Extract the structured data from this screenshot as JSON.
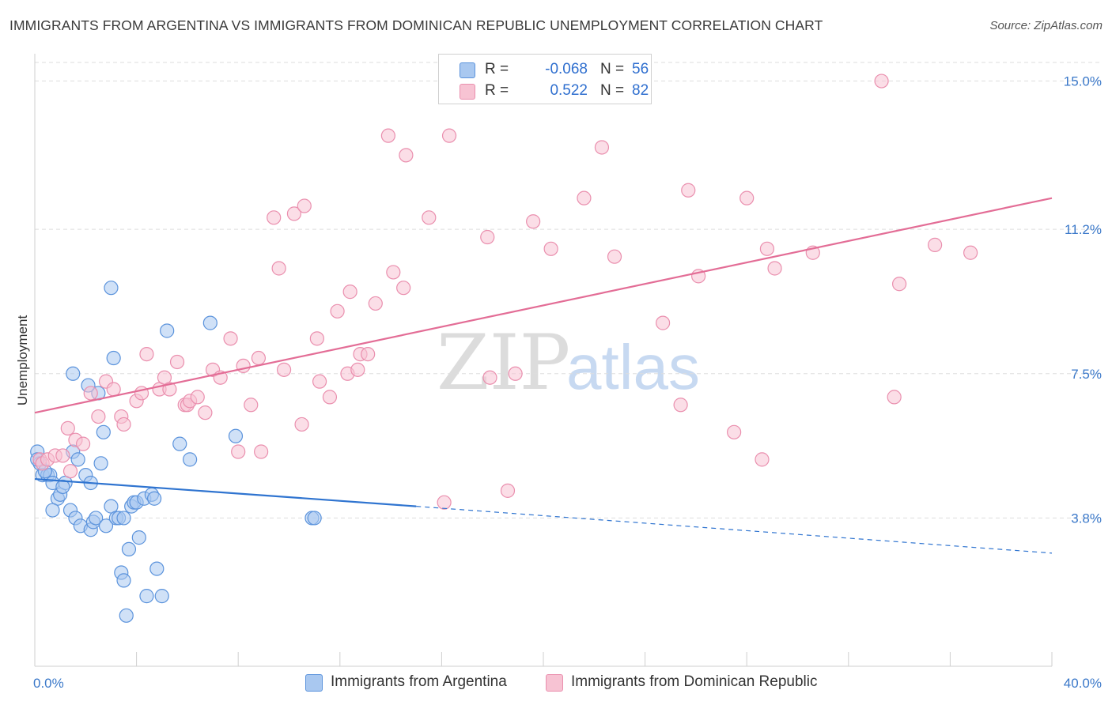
{
  "title": "IMMIGRANTS FROM ARGENTINA VS IMMIGRANTS FROM DOMINICAN REPUBLIC UNEMPLOYMENT CORRELATION CHART",
  "source": "Source: ZipAtlas.com",
  "watermark": {
    "zip": "ZIP",
    "atlas": "atlas"
  },
  "legend": {
    "r_label": "R =",
    "n_label": "N =",
    "rows": [
      {
        "series": "Immigrants from Argentina",
        "r": "-0.068",
        "n": "56"
      },
      {
        "series": "Immigrants from Dominican Republic",
        "r": "0.522",
        "n": "82"
      }
    ]
  },
  "colors": {
    "argentina_fill": "#a9c8f0",
    "argentina_stroke": "#5b93dc",
    "argentina_line": "#2f74d0",
    "dominican_fill": "#f7c3d3",
    "dominican_stroke": "#ea8fae",
    "dominican_line": "#e36d96",
    "tick_text": "#3a78c9",
    "grid": "#dddddd"
  },
  "chart_data": {
    "type": "scatter",
    "title": "IMMIGRANTS FROM ARGENTINA VS IMMIGRANTS FROM DOMINICAN REPUBLIC UNEMPLOYMENT CORRELATION CHART",
    "xlabel": "",
    "ylabel": "Unemployment",
    "xlim": [
      0,
      40
    ],
    "ylim": [
      0,
      15.7
    ],
    "x_tick_labels": [
      "0.0%",
      "40.0%"
    ],
    "y_ticks": [
      3.8,
      7.5,
      11.2,
      15.0
    ],
    "y_tick_labels": [
      "3.8%",
      "7.5%",
      "11.2%",
      "15.0%"
    ],
    "grid": "horizontal dashed",
    "legend_position": "top-center",
    "series": [
      {
        "name": "Immigrants from Argentina",
        "r": -0.068,
        "n": 56,
        "trend": {
          "x0": 0,
          "y0": 4.8,
          "x1": 15.0,
          "y1": 4.1,
          "dashed_to_x": 40,
          "dashed_to_y": 2.9
        },
        "points": [
          [
            0.1,
            5.5
          ],
          [
            0.2,
            5.2
          ],
          [
            0.3,
            4.9
          ],
          [
            0.5,
            4.9
          ],
          [
            0.6,
            4.9
          ],
          [
            0.7,
            4.7
          ],
          [
            0.9,
            4.3
          ],
          [
            1.0,
            4.4
          ],
          [
            0.7,
            4.0
          ],
          [
            1.2,
            4.7
          ],
          [
            1.1,
            4.6
          ],
          [
            1.4,
            4.0
          ],
          [
            1.5,
            5.5
          ],
          [
            1.7,
            5.3
          ],
          [
            1.6,
            3.8
          ],
          [
            1.8,
            3.6
          ],
          [
            2.0,
            4.9
          ],
          [
            2.2,
            4.7
          ],
          [
            2.2,
            3.5
          ],
          [
            2.3,
            3.7
          ],
          [
            2.4,
            3.8
          ],
          [
            2.6,
            5.2
          ],
          [
            2.5,
            7.0
          ],
          [
            1.5,
            7.5
          ],
          [
            2.7,
            6.0
          ],
          [
            2.1,
            7.2
          ],
          [
            2.8,
            3.6
          ],
          [
            3.0,
            4.1
          ],
          [
            3.2,
            3.8
          ],
          [
            3.3,
            3.8
          ],
          [
            3.5,
            3.8
          ],
          [
            3.8,
            4.1
          ],
          [
            3.9,
            4.2
          ],
          [
            4.0,
            4.2
          ],
          [
            4.3,
            4.3
          ],
          [
            4.6,
            4.4
          ],
          [
            4.7,
            4.3
          ],
          [
            3.7,
            3.0
          ],
          [
            4.1,
            3.3
          ],
          [
            3.4,
            2.4
          ],
          [
            3.5,
            2.2
          ],
          [
            3.6,
            1.3
          ],
          [
            4.4,
            1.8
          ],
          [
            4.8,
            2.5
          ],
          [
            5.0,
            1.8
          ],
          [
            5.2,
            8.6
          ],
          [
            5.7,
            5.7
          ],
          [
            6.1,
            5.3
          ],
          [
            6.9,
            8.8
          ],
          [
            7.9,
            5.9
          ],
          [
            3.0,
            9.7
          ],
          [
            3.1,
            7.9
          ],
          [
            10.9,
            3.8
          ],
          [
            11.0,
            3.8
          ],
          [
            0.1,
            5.3
          ],
          [
            0.4,
            5.0
          ]
        ]
      },
      {
        "name": "Immigrants from Dominican Republic",
        "r": 0.522,
        "n": 82,
        "trend": {
          "x0": 0,
          "y0": 6.5,
          "x1": 40,
          "y1": 12.0
        },
        "points": [
          [
            0.2,
            5.3
          ],
          [
            0.3,
            5.2
          ],
          [
            0.5,
            5.3
          ],
          [
            0.8,
            5.4
          ],
          [
            1.1,
            5.4
          ],
          [
            1.3,
            6.1
          ],
          [
            1.4,
            5.0
          ],
          [
            1.6,
            5.8
          ],
          [
            1.9,
            5.7
          ],
          [
            2.2,
            7.0
          ],
          [
            2.5,
            6.4
          ],
          [
            2.8,
            7.3
          ],
          [
            3.1,
            7.1
          ],
          [
            3.4,
            6.4
          ],
          [
            3.5,
            6.2
          ],
          [
            4.0,
            6.8
          ],
          [
            4.2,
            7.0
          ],
          [
            4.4,
            8.0
          ],
          [
            4.9,
            7.1
          ],
          [
            5.1,
            7.4
          ],
          [
            5.3,
            7.1
          ],
          [
            5.6,
            7.8
          ],
          [
            5.9,
            6.7
          ],
          [
            6.0,
            6.7
          ],
          [
            6.1,
            6.8
          ],
          [
            6.4,
            6.9
          ],
          [
            6.7,
            6.5
          ],
          [
            7.0,
            7.6
          ],
          [
            7.3,
            7.4
          ],
          [
            7.7,
            8.4
          ],
          [
            8.0,
            5.5
          ],
          [
            8.2,
            7.7
          ],
          [
            8.5,
            6.7
          ],
          [
            8.8,
            7.9
          ],
          [
            8.9,
            5.5
          ],
          [
            9.4,
            11.5
          ],
          [
            9.6,
            10.2
          ],
          [
            9.8,
            7.6
          ],
          [
            10.2,
            11.6
          ],
          [
            10.5,
            6.2
          ],
          [
            10.6,
            11.8
          ],
          [
            11.1,
            8.4
          ],
          [
            11.2,
            7.3
          ],
          [
            11.6,
            6.9
          ],
          [
            11.9,
            9.1
          ],
          [
            12.3,
            7.5
          ],
          [
            12.4,
            9.6
          ],
          [
            12.7,
            7.6
          ],
          [
            12.8,
            8.0
          ],
          [
            13.1,
            8.0
          ],
          [
            13.4,
            9.3
          ],
          [
            13.9,
            13.6
          ],
          [
            14.1,
            10.1
          ],
          [
            14.5,
            9.7
          ],
          [
            14.6,
            13.1
          ],
          [
            15.5,
            11.5
          ],
          [
            16.1,
            4.2
          ],
          [
            16.3,
            13.6
          ],
          [
            17.8,
            11.0
          ],
          [
            17.9,
            7.4
          ],
          [
            18.6,
            4.5
          ],
          [
            18.9,
            7.5
          ],
          [
            19.6,
            11.4
          ],
          [
            20.3,
            10.7
          ],
          [
            21.6,
            12.0
          ],
          [
            22.3,
            13.3
          ],
          [
            22.8,
            10.5
          ],
          [
            24.7,
            8.8
          ],
          [
            25.4,
            6.7
          ],
          [
            25.7,
            12.2
          ],
          [
            26.1,
            10.0
          ],
          [
            27.5,
            6.0
          ],
          [
            28.0,
            12.0
          ],
          [
            28.6,
            5.3
          ],
          [
            28.8,
            10.7
          ],
          [
            29.1,
            10.2
          ],
          [
            30.6,
            10.6
          ],
          [
            33.3,
            15.0
          ],
          [
            33.8,
            6.9
          ],
          [
            34.0,
            9.8
          ],
          [
            35.4,
            10.8
          ],
          [
            36.8,
            10.6
          ]
        ]
      }
    ]
  }
}
